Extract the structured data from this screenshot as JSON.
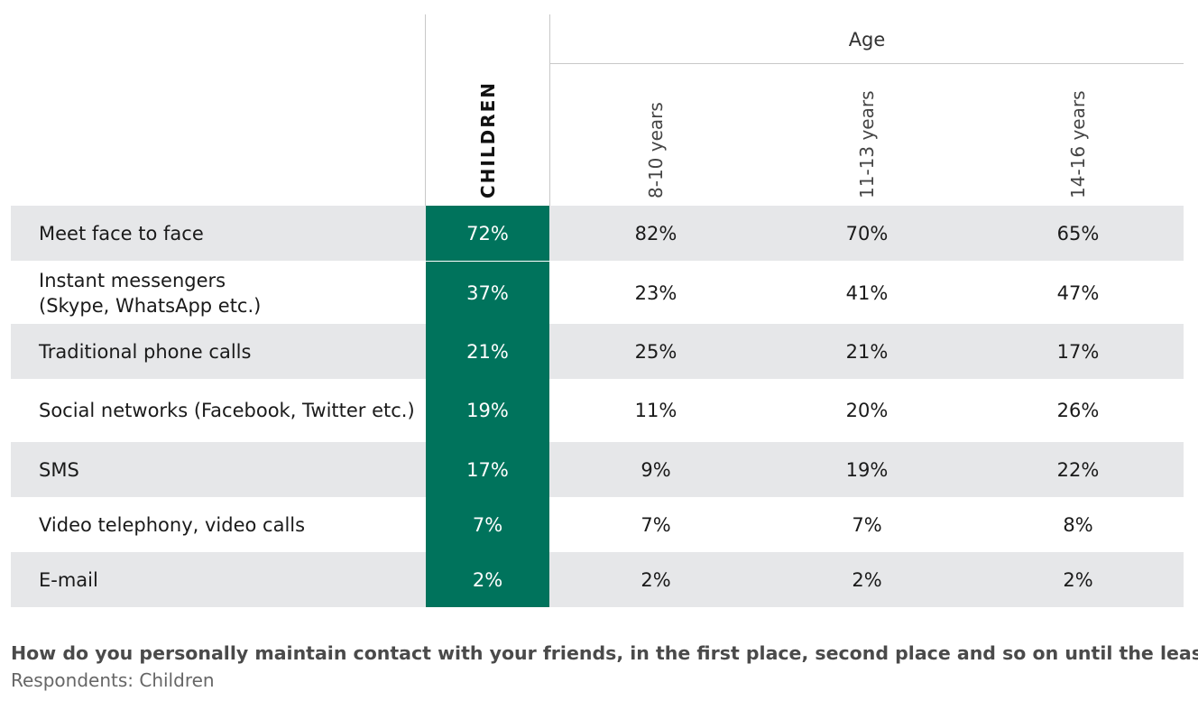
{
  "table": {
    "group_label": "Age",
    "columns": [
      "CHILDREN",
      "8-10 years",
      "11-13 years",
      "14-16 years"
    ],
    "rows": [
      {
        "label": "Meet face to face",
        "values": [
          "72%",
          "82%",
          "70%",
          "65%"
        ]
      },
      {
        "label": "Instant messengers\n(Skype, WhatsApp etc.)",
        "values": [
          "37%",
          "23%",
          "41%",
          "47%"
        ]
      },
      {
        "label": "Traditional phone calls",
        "values": [
          "21%",
          "25%",
          "21%",
          "17%"
        ]
      },
      {
        "label": "Social networks (Facebook, Twitter etc.)",
        "values": [
          "19%",
          "11%",
          "20%",
          "26%"
        ]
      },
      {
        "label": "SMS",
        "values": [
          "17%",
          "9%",
          "19%",
          "22%"
        ]
      },
      {
        "label": "Video telephony, video calls",
        "values": [
          "7%",
          "7%",
          "7%",
          "8%"
        ]
      },
      {
        "label": "E-mail",
        "values": [
          "2%",
          "2%",
          "2%",
          "2%"
        ]
      }
    ]
  },
  "chart_data": {
    "type": "table",
    "title": "How do you personally maintain contact with your friends, in the first place, second place and so on until the least?",
    "subtitle": "Respondents: Children",
    "column_group": "Age",
    "columns": [
      "CHILDREN",
      "8-10 years",
      "11-13 years",
      "14-16 years"
    ],
    "categories": [
      "Meet face to face",
      "Instant messengers (Skype, WhatsApp etc.)",
      "Traditional phone calls",
      "Social networks (Facebook, Twitter etc.)",
      "SMS",
      "Video telephony, video calls",
      "E-mail"
    ],
    "series": [
      {
        "name": "CHILDREN",
        "values": [
          72,
          37,
          21,
          19,
          17,
          7,
          2
        ]
      },
      {
        "name": "8-10 years",
        "values": [
          82,
          23,
          25,
          11,
          9,
          7,
          2
        ]
      },
      {
        "name": "11-13 years",
        "values": [
          70,
          41,
          21,
          20,
          19,
          7,
          2
        ]
      },
      {
        "name": "14-16 years",
        "values": [
          65,
          47,
          17,
          26,
          22,
          8,
          2
        ]
      }
    ],
    "unit": "%"
  },
  "footer": {
    "question": "How do you personally maintain contact with your friends, in the first place, second place and so on until the least?",
    "respondents": "Respondents: Children"
  },
  "colors": {
    "highlight": "#00735c",
    "row_shade": "#e6e7e9",
    "rule": "#c8c8c8"
  }
}
